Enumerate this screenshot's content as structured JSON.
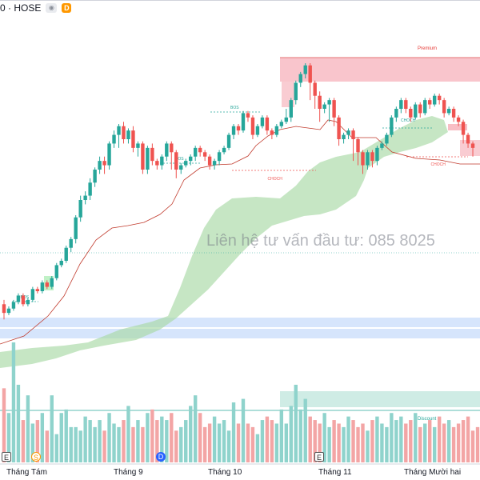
{
  "header": {
    "symbol": "0 · HOSE",
    "interval_badge": "D",
    "eye_icon": "eye-icon"
  },
  "watermark": "Liên hệ tư vấn đầu tư:  085 8025",
  "xaxis": {
    "labels": [
      "Tháng Tám",
      "Tháng 9",
      "Tháng 10",
      "Tháng 11",
      "Tháng Mười hai"
    ],
    "markers": [
      "E",
      "S",
      "D",
      "E"
    ]
  },
  "colors": {
    "up": "#26a69a",
    "down": "#ef5350",
    "vol_up": "#8fd3cc",
    "vol_down": "#f3a5a5",
    "premium_zone": "#f7b7bf",
    "discount_zone": "#bfe6dc",
    "blue_band": "#cfe0fb",
    "cloud": "#a8d8a4",
    "trail_line": "#c0392b"
  },
  "annotations": {
    "premium": "Premium",
    "discount": "Discount",
    "bos": [
      "BOS",
      "BOS",
      "BOS"
    ],
    "choch": [
      "CHOCH",
      "CHOCH",
      "CHOCH"
    ]
  },
  "chart_data": {
    "type": "candlestick",
    "note_axis": "price axis not printed",
    "candles": [
      [
        41,
        39,
        42,
        37.5
      ],
      [
        39,
        40,
        40.5,
        38.5
      ],
      [
        40,
        41.5,
        42,
        39.5
      ],
      [
        41.5,
        43,
        43.5,
        41
      ],
      [
        43,
        41,
        43.5,
        40.5
      ],
      [
        41,
        42,
        42.5,
        40.5
      ],
      [
        42,
        44.5,
        45,
        41.5
      ],
      [
        44.5,
        44,
        45,
        43.5
      ],
      [
        44,
        46,
        46.5,
        43.5
      ],
      [
        46,
        45,
        46.5,
        44.5
      ],
      [
        45,
        47,
        47.5,
        44.5
      ],
      [
        47,
        50,
        50.5,
        46.5
      ],
      [
        50,
        51,
        51.5,
        49.5
      ],
      [
        51,
        54,
        54.5,
        50.5
      ],
      [
        54,
        56,
        56.5,
        53
      ],
      [
        56,
        61,
        61.5,
        55
      ],
      [
        61,
        65,
        66,
        60
      ],
      [
        65,
        66,
        67,
        64
      ],
      [
        66,
        69,
        70,
        65
      ],
      [
        69,
        72,
        72.5,
        68
      ],
      [
        72,
        74,
        75,
        71
      ],
      [
        74,
        73,
        75,
        71
      ],
      [
        73,
        78,
        78.5,
        72
      ],
      [
        78,
        80,
        81,
        77
      ],
      [
        80,
        82,
        82.5,
        77
      ],
      [
        82,
        79,
        83,
        78
      ],
      [
        79,
        81,
        81.5,
        78
      ],
      [
        81,
        77,
        82,
        76
      ],
      [
        77,
        78,
        78.5,
        75
      ],
      [
        78,
        72,
        78.5,
        71
      ],
      [
        72,
        77,
        77.5,
        71
      ],
      [
        77,
        74,
        78,
        73
      ],
      [
        74,
        73,
        74.5,
        72
      ],
      [
        73,
        75,
        75.5,
        72
      ],
      [
        75,
        78,
        78.5,
        74
      ],
      [
        78,
        76,
        78.5,
        72
      ],
      [
        76,
        72,
        76.5,
        70
      ],
      [
        72,
        73,
        73.5,
        71
      ],
      [
        73,
        74,
        74.5,
        72.5
      ],
      [
        74,
        75,
        75.5,
        73
      ],
      [
        75,
        77,
        77.5,
        74
      ],
      [
        77,
        76,
        77.5,
        75
      ],
      [
        76,
        75,
        76.5,
        74
      ],
      [
        75,
        73,
        75.5,
        72
      ],
      [
        73,
        74,
        74.5,
        72
      ],
      [
        74,
        76,
        76.5,
        73
      ],
      [
        76,
        77,
        77.5,
        75.5
      ],
      [
        77,
        80,
        80.5,
        76.5
      ],
      [
        80,
        82,
        82.5,
        79
      ],
      [
        82,
        81,
        82.5,
        80
      ],
      [
        81,
        85,
        85.5,
        80.5
      ],
      [
        85,
        84,
        85.5,
        83
      ],
      [
        84,
        80,
        84.5,
        79
      ],
      [
        80,
        82,
        82.5,
        79.5
      ],
      [
        82,
        84,
        84.5,
        81.5
      ],
      [
        84,
        81,
        84.5,
        80
      ],
      [
        81,
        80,
        81.5,
        79
      ],
      [
        80,
        82,
        82.5,
        79.5
      ],
      [
        82,
        83,
        83.5,
        81.5
      ],
      [
        83,
        84,
        86,
        82.5
      ],
      [
        84,
        88,
        88.5,
        83
      ],
      [
        88,
        92,
        92.5,
        87
      ],
      [
        92,
        94,
        94.5,
        91
      ],
      [
        94,
        96,
        96.5,
        93
      ],
      [
        96,
        92,
        96.5,
        88
      ],
      [
        92,
        89,
        92.5,
        86
      ],
      [
        89,
        86,
        90,
        83
      ],
      [
        86,
        87,
        87.5,
        85
      ],
      [
        87,
        88,
        88.5,
        83
      ],
      [
        88,
        84,
        88.5,
        82
      ],
      [
        84,
        79,
        84.5,
        77.5
      ],
      [
        79,
        80,
        80.5,
        78
      ],
      [
        80,
        81,
        81.5,
        79
      ],
      [
        81,
        79,
        81.5,
        74
      ],
      [
        79,
        76,
        79.5,
        73
      ],
      [
        76,
        73,
        76.5,
        71
      ],
      [
        73,
        76,
        76.5,
        72
      ],
      [
        76,
        74,
        76.5,
        72.5
      ],
      [
        74,
        77,
        77.5,
        73
      ],
      [
        77,
        78,
        78.5,
        76.5
      ],
      [
        78,
        80,
        80.5,
        77.5
      ],
      [
        80,
        84,
        84.5,
        79.5
      ],
      [
        84,
        86,
        86.5,
        83
      ],
      [
        86,
        88,
        88.5,
        85
      ],
      [
        88,
        86,
        88.5,
        85
      ],
      [
        86,
        84,
        86.5,
        83
      ],
      [
        84,
        87,
        87.5,
        83.5
      ],
      [
        87,
        85,
        87.5,
        84
      ],
      [
        85,
        88,
        88.5,
        84.5
      ],
      [
        88,
        87,
        88.5,
        86
      ],
      [
        87,
        89,
        89.5,
        86.5
      ],
      [
        89,
        88,
        89.5,
        87
      ],
      [
        88,
        85,
        88.5,
        84
      ],
      [
        85,
        86,
        86.5,
        84.5
      ],
      [
        86,
        84,
        86.5,
        83
      ],
      [
        84,
        83,
        84.5,
        82
      ],
      [
        83,
        80,
        83.5,
        78
      ],
      [
        80,
        78,
        80.5,
        77
      ],
      [
        78,
        77,
        78.5,
        75
      ]
    ],
    "volume": [
      21,
      14,
      34,
      22,
      12,
      19,
      11,
      12,
      14,
      9,
      19,
      8,
      14,
      15,
      10,
      10,
      9,
      13,
      12,
      10,
      12,
      9,
      14,
      11,
      10,
      12,
      16,
      10,
      12,
      10,
      14,
      15,
      12,
      13,
      12,
      14,
      9,
      10,
      12,
      16,
      19,
      14,
      10,
      11,
      13,
      11,
      12,
      9,
      17,
      11,
      18,
      11,
      10,
      8,
      12,
      13,
      12,
      11,
      15,
      11,
      16,
      22,
      15,
      18,
      13,
      12,
      11,
      14,
      10,
      12,
      11,
      10,
      13,
      12,
      10,
      11,
      9,
      12,
      13,
      11,
      10,
      14,
      12,
      13,
      11,
      12,
      14,
      10,
      11,
      12,
      10,
      13,
      11,
      12,
      10,
      11,
      12,
      13,
      9,
      10
    ]
  }
}
